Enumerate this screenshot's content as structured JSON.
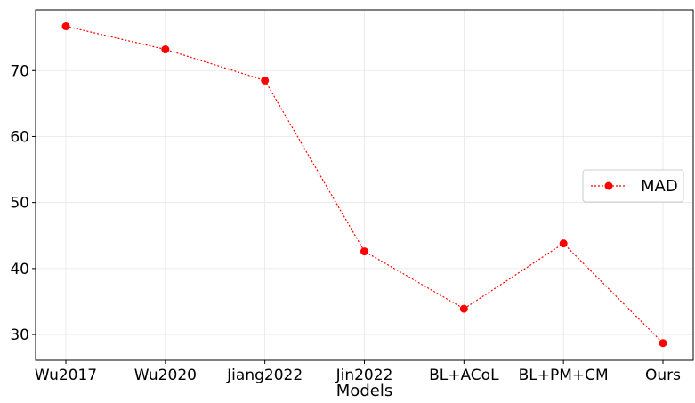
{
  "chart_data": {
    "type": "line",
    "title": "",
    "xlabel": "Models",
    "ylabel": "",
    "categories": [
      "Wu2017",
      "Wu2020",
      "Jiang2022",
      "Jin2022",
      "BL+ACoL",
      "BL+PM+CM",
      "Ours"
    ],
    "series": [
      {
        "name": "MAD",
        "values": [
          76.7,
          73.2,
          68.5,
          42.6,
          33.9,
          43.8,
          28.7
        ],
        "color": "#ff0000",
        "line_style": "dotted",
        "marker": "circle"
      }
    ],
    "yticks": [
      30,
      40,
      50,
      60,
      70
    ],
    "ylim": [
      26.1,
      79.2
    ],
    "grid": true,
    "legend_position": "right"
  }
}
